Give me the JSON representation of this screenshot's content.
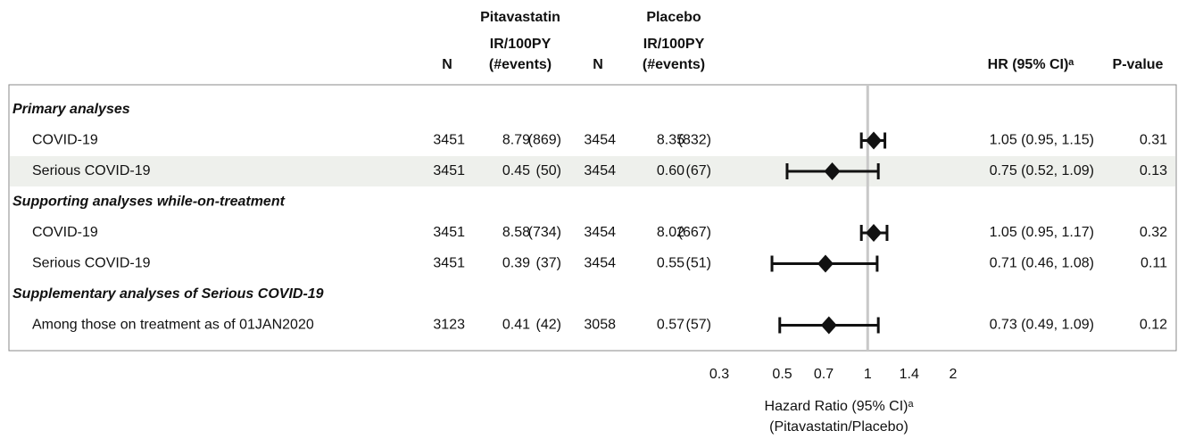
{
  "chart_data": {
    "type": "forest",
    "groups": [
      {
        "name": "Pitavastatin",
        "color": "#5b1a5e"
      },
      {
        "name": "Placebo",
        "color": "#1e9a8c"
      }
    ],
    "columns": {
      "n": "N",
      "ir": "IR/100PY",
      "events": "(#events)",
      "hr": "HR (95% CI)ᵃ",
      "p": "P-value"
    },
    "rows": [
      {
        "label": "Primary analyses",
        "heading": true
      },
      {
        "label": "COVID-19",
        "n": [
          3451,
          3454
        ],
        "ir": [
          8.79,
          8.35
        ],
        "events": [
          "(869)",
          "(832)"
        ],
        "hr": 1.05,
        "lo": 0.95,
        "hi": 1.15,
        "hr_label": "1.05 (0.95, 1.15)",
        "p": 0.31
      },
      {
        "label": "Serious COVID-19",
        "shaded": true,
        "n": [
          3451,
          3454
        ],
        "ir": [
          0.45,
          0.6
        ],
        "ir_labels": [
          "0.45",
          "0.60"
        ],
        "events": [
          "(50)",
          "(67)"
        ],
        "hr": 0.75,
        "lo": 0.52,
        "hi": 1.09,
        "hr_label": "0.75 (0.52, 1.09)",
        "p": 0.13
      },
      {
        "label": "Supporting analyses while-on-treatment",
        "heading": true
      },
      {
        "label": "COVID-19",
        "n": [
          3451,
          3454
        ],
        "ir": [
          8.58,
          8.02
        ],
        "events": [
          "(734)",
          "(667)"
        ],
        "hr": 1.05,
        "lo": 0.95,
        "hi": 1.17,
        "hr_label": "1.05 (0.95, 1.17)",
        "p": 0.32
      },
      {
        "label": "Serious COVID-19",
        "n": [
          3451,
          3454
        ],
        "ir": [
          0.39,
          0.55
        ],
        "events": [
          "(37)",
          "(51)"
        ],
        "hr": 0.71,
        "lo": 0.46,
        "hi": 1.08,
        "hr_label": "0.71 (0.46, 1.08)",
        "p": 0.11
      },
      {
        "label": "Supplementary analyses of Serious COVID-19",
        "heading": true
      },
      {
        "label": "Among those on treatment as of 01JAN2020",
        "n": [
          3123,
          3058
        ],
        "ir": [
          0.41,
          0.57
        ],
        "events": [
          "(42)",
          "(57)"
        ],
        "hr": 0.73,
        "lo": 0.49,
        "hi": 1.09,
        "hr_label": "0.73 (0.49, 1.09)",
        "p": 0.12
      }
    ],
    "xlim": [
      0.3,
      2
    ],
    "xticks": [
      0.3,
      0.5,
      0.7,
      1,
      1.4,
      2
    ],
    "xscale": "log",
    "refline": 1,
    "xlabel": [
      "Hazard Ratio (95% CI)ᵃ",
      "(Pitavastatin/Placebo)"
    ]
  }
}
